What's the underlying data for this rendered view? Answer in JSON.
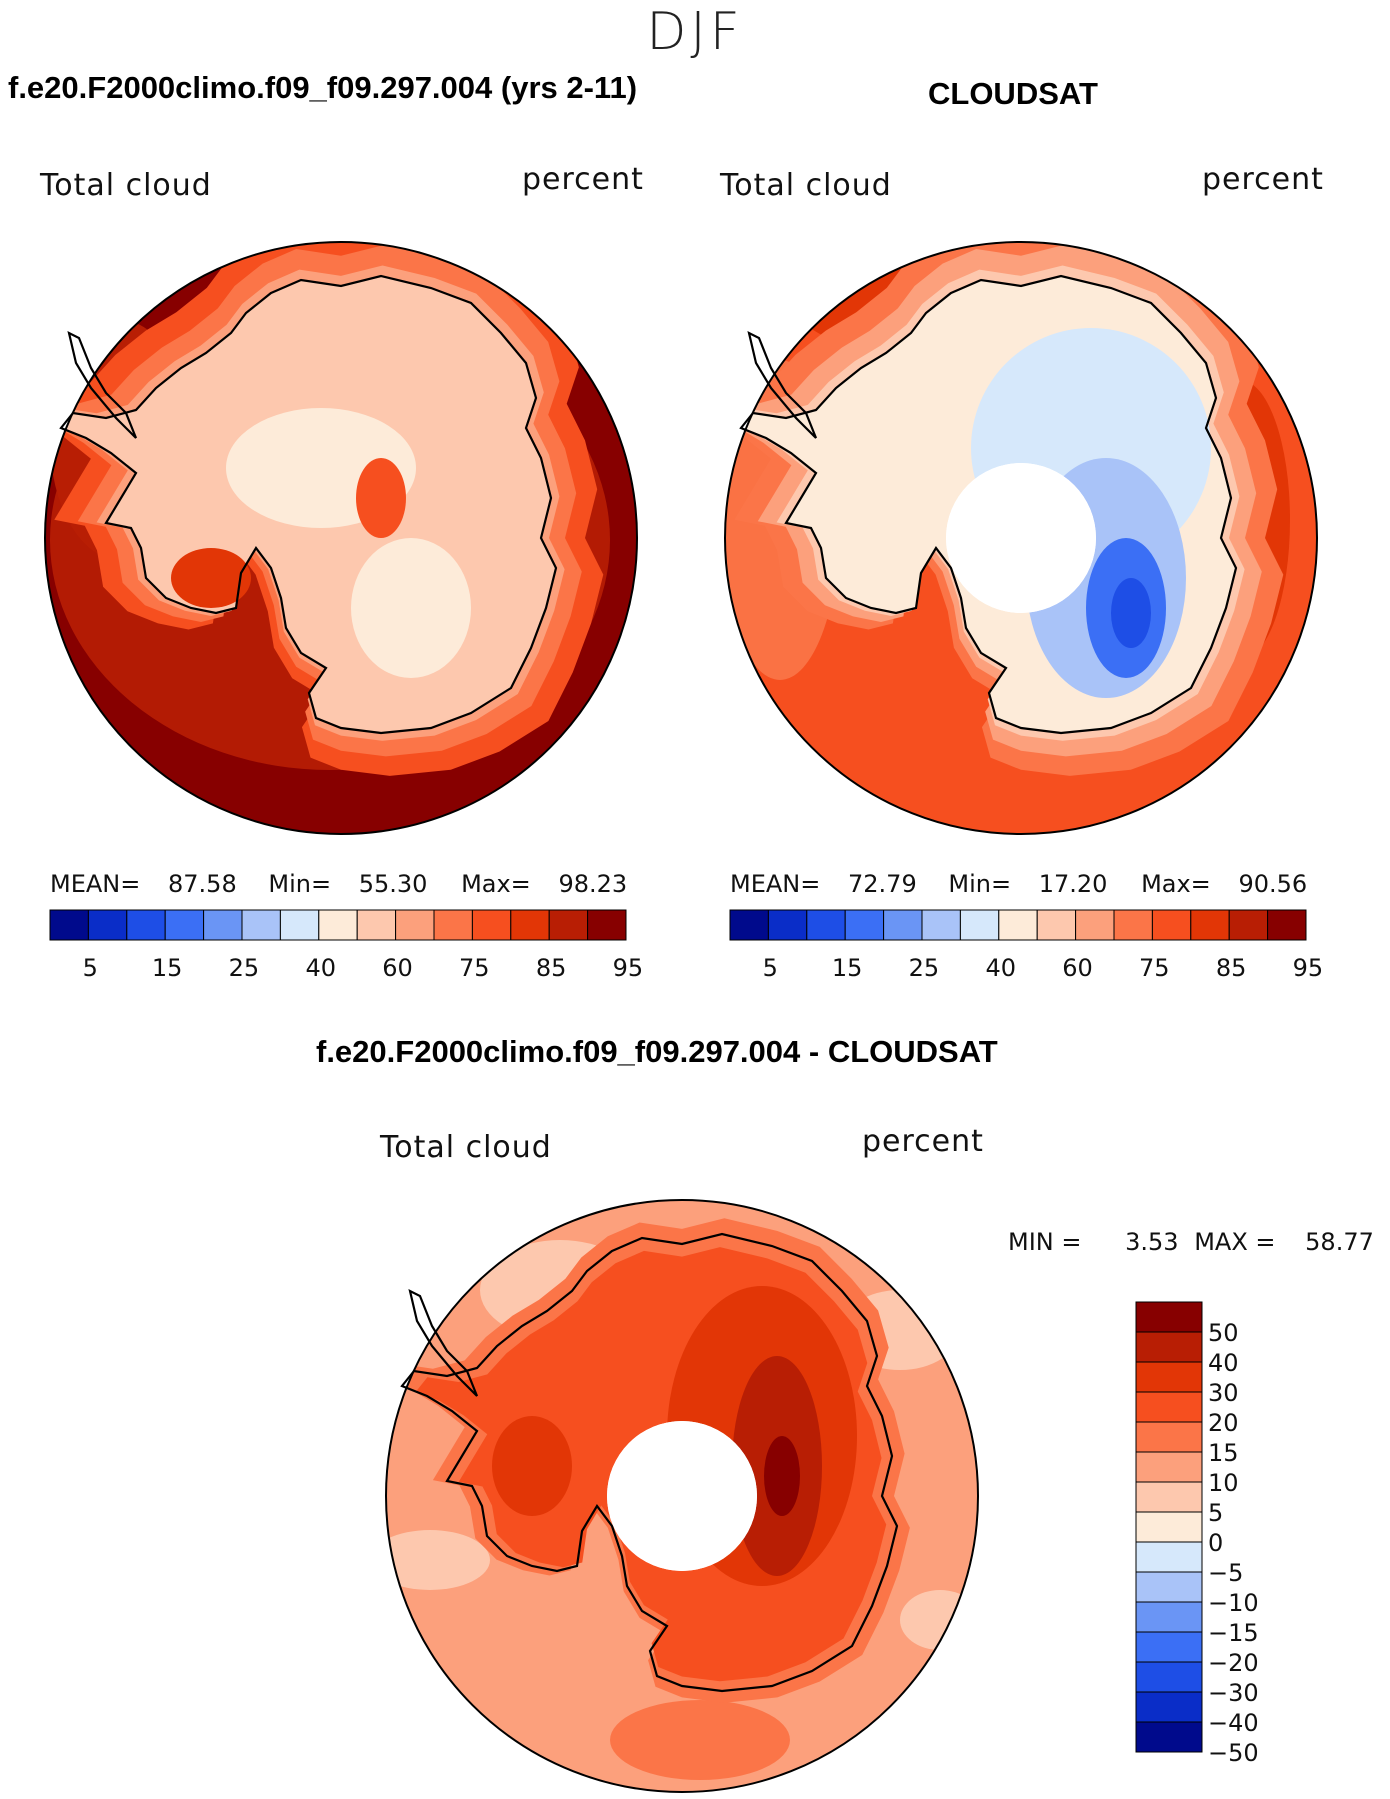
{
  "season": "DJF",
  "panels": [
    {
      "title": "f.e20.F2000climo.f09_f09.297.004 (yrs 2-11)",
      "variable": "Total cloud",
      "units": "percent",
      "stats": {
        "mean_label": "MEAN=",
        "mean": "87.58",
        "min_label": "Min=",
        "min": "55.30",
        "max_label": "Max=",
        "max": "98.23"
      },
      "colorbar_ticks": [
        "5",
        "15",
        "25",
        "40",
        "60",
        "75",
        "85",
        "95"
      ]
    },
    {
      "title": "CLOUDSAT",
      "variable": "Total cloud",
      "units": "percent",
      "stats": {
        "mean_label": "MEAN=",
        "mean": "72.79",
        "min_label": "Min=",
        "min": "17.20",
        "max_label": "Max=",
        "max": "90.56"
      },
      "colorbar_ticks": [
        "5",
        "15",
        "25",
        "40",
        "60",
        "75",
        "85",
        "95"
      ]
    },
    {
      "title": "f.e20.F2000climo.f09_f09.297.004 - CLOUDSAT",
      "variable": "Total cloud",
      "units": "percent",
      "stats": {
        "min_label": "MIN =",
        "min": "3.53",
        "max_label": "MAX =",
        "max": "58.77"
      },
      "colorbar_ticks": [
        "50",
        "40",
        "30",
        "20",
        "15",
        "10",
        "5",
        "0",
        "−5",
        "−10",
        "−15",
        "−20",
        "−30",
        "−40",
        "−50"
      ]
    }
  ],
  "colors": {
    "abs_scale": [
      "#000a8c",
      "#0a2dc8",
      "#1e4ee6",
      "#3b6ff5",
      "#6a95f5",
      "#a9c3f8",
      "#d6e8fb",
      "#fdebd9",
      "#fdc8ae",
      "#fca07c",
      "#fb7548",
      "#f64f1f",
      "#e23606",
      "#b81e04",
      "#870000"
    ],
    "diff_scale": [
      "#870000",
      "#b81e04",
      "#e23606",
      "#f64f1f",
      "#fb7548",
      "#fca07c",
      "#fdc8ae",
      "#fdebd9",
      "#d6e8fb",
      "#a9c3f8",
      "#6a95f5",
      "#3b6ff5",
      "#1e4ee6",
      "#0a2dc8",
      "#000a8c"
    ]
  }
}
